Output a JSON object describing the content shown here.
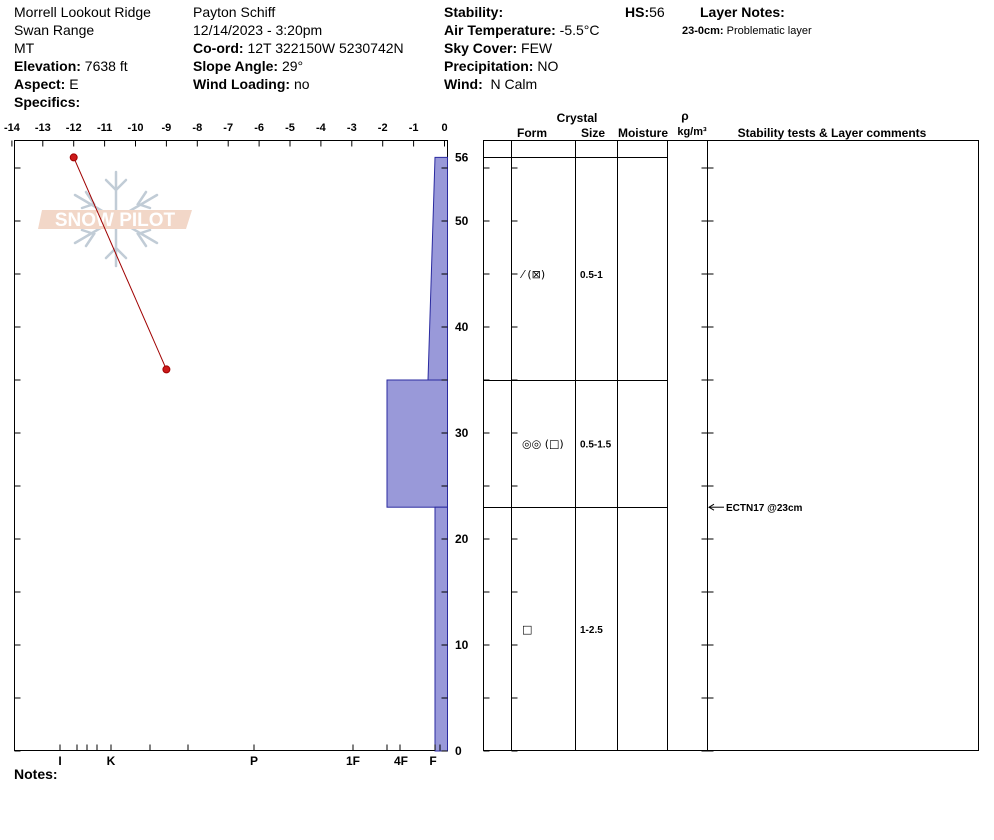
{
  "header": {
    "location": "Morrell Lookout Ridge",
    "range": "Swan Range",
    "state": "MT",
    "elevation_label": "Elevation:",
    "elevation": "7638 ft",
    "aspect_label": "Aspect:",
    "aspect": "E",
    "specifics_label": "Specifics:",
    "observer": "Payton Schiff",
    "datetime": "12/14/2023 - 3:20pm",
    "coord_label": "Co-ord:",
    "coord": "12T 322150W 5230742N",
    "slope_label": "Slope Angle:",
    "slope": "29°",
    "wind_loading_label": "Wind Loading:",
    "wind_loading": "no",
    "stability_label": "Stability:",
    "air_temp_label": "Air Temperature:",
    "air_temp": "-5.5°C",
    "sky_label": "Sky Cover:",
    "sky": "FEW",
    "precip_label": "Precipitation:",
    "precip": "NO",
    "wind_label": "Wind:",
    "wind": "N Calm",
    "hs_label": "HS:",
    "hs": "56",
    "layer_notes_label": "Layer Notes:",
    "layer_note_depth": "23-0cm:",
    "layer_note_text": "Problematic layer",
    "notes_label": "Notes:"
  },
  "table_headers": {
    "crystal": "Crystal",
    "form": "Form",
    "size": "Size",
    "moisture": "Moisture",
    "rho": "ρ",
    "density_unit": "kg/m³",
    "comments": "Stability tests & Layer comments"
  },
  "watermark": "SNOW PILOT",
  "chart_data": {
    "type": "snow_profile",
    "temperature_axis": {
      "ticks": [
        -14,
        -13,
        -12,
        -11,
        -10,
        -9,
        -8,
        -7,
        -6,
        -5,
        -4,
        -3,
        -2,
        -1,
        0
      ],
      "range": [
        -14,
        0
      ]
    },
    "height_axis": {
      "ticks": [
        0,
        10,
        20,
        30,
        40,
        50,
        56
      ],
      "range": [
        0,
        56
      ]
    },
    "hardness_axis": {
      "labels": [
        "I",
        "K",
        "P",
        "1F",
        "4F",
        "F"
      ]
    },
    "temperature_profile": [
      {
        "height": 56,
        "temp": -12
      },
      {
        "height": 36,
        "temp": -9
      }
    ],
    "hardness_profile": [
      {
        "top": 56,
        "bottom": 35,
        "hardness_top": "F",
        "hardness_bottom": "F+"
      },
      {
        "top": 35,
        "bottom": 23,
        "hardness": "4F"
      },
      {
        "top": 23,
        "bottom": 0,
        "hardness": "F"
      }
    ],
    "layer_boundaries": [
      56,
      35,
      23
    ],
    "layers": [
      {
        "height": 45,
        "form_symbols": "⁄ (⊠)",
        "size": "0.5-1"
      },
      {
        "height": 29,
        "form_symbols": "◎◎ (□)",
        "size": "0.5-1.5"
      },
      {
        "height": 11.5,
        "form_symbols": "□",
        "size": "1-2.5"
      }
    ],
    "stability_tests": [
      {
        "height": 23,
        "label": "ECTN17 @23cm"
      }
    ]
  }
}
